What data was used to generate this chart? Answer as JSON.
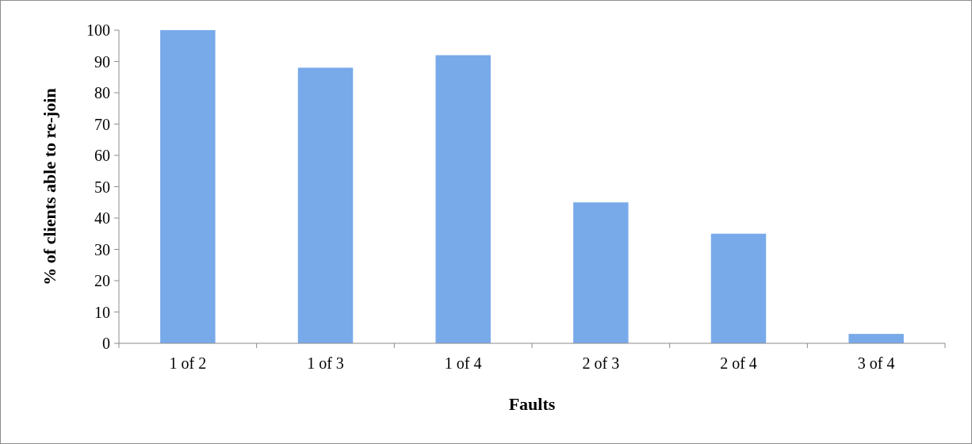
{
  "chart_data": {
    "type": "bar",
    "xlabel": "Faults",
    "ylabel": "% of clients able to re-join",
    "categories": [
      "1 of 2",
      "1 of 3",
      "1 of 4",
      "2 of 3",
      "2 of 4",
      "3 of 4"
    ],
    "values": [
      100,
      88,
      92,
      45,
      35,
      3
    ],
    "color": "#78aaea",
    "ylim": [
      0,
      100
    ],
    "yticks": [
      0,
      10,
      20,
      30,
      40,
      50,
      60,
      70,
      80,
      90,
      100
    ],
    "grid": false
  }
}
